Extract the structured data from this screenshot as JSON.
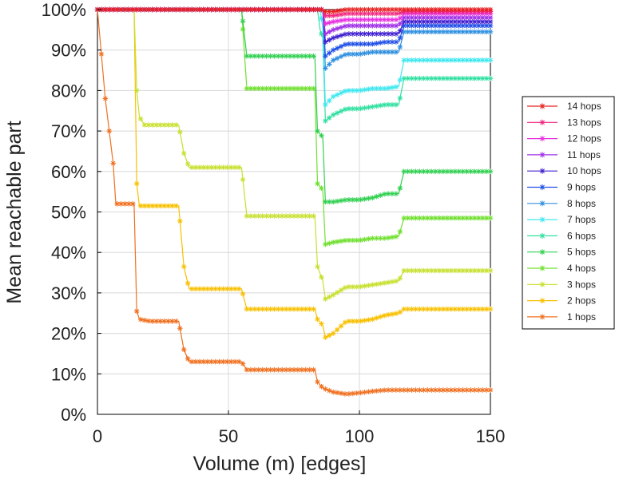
{
  "chart_data": {
    "type": "line",
    "title": "",
    "xlabel": "Volume (m) [edges]",
    "ylabel": "Mean reachable part",
    "xlim": [
      0,
      150
    ],
    "ylim": [
      0,
      100
    ],
    "x_ticks": [
      0,
      50,
      100,
      150
    ],
    "x_tick_labels": [
      "0",
      "50",
      "100",
      "150"
    ],
    "y_ticks": [
      0,
      10,
      20,
      30,
      40,
      50,
      60,
      70,
      80,
      90,
      100
    ],
    "y_tick_labels": [
      "0%",
      "10%",
      "20%",
      "30%",
      "40%",
      "50%",
      "60%",
      "70%",
      "80%",
      "90%",
      "100%"
    ],
    "grid": true,
    "legend_position": "right",
    "legend_order": [
      "14 hops",
      "13 hops",
      "12 hops",
      "11 hops",
      "10 hops",
      "9 hops",
      "8 hops",
      "7 hops",
      "6 hops",
      "5 hops",
      "4 hops",
      "3 hops",
      "2 hops",
      "1 hops"
    ],
    "series": [
      {
        "name": "1 hops",
        "color": "#f07020",
        "points": [
          [
            0,
            100
          ],
          [
            3,
            78
          ],
          [
            6,
            62
          ],
          [
            7,
            52
          ],
          [
            10,
            52
          ],
          [
            14,
            52
          ],
          [
            15,
            25.5
          ],
          [
            16,
            23.5
          ],
          [
            20,
            23
          ],
          [
            25,
            23
          ],
          [
            31,
            23
          ],
          [
            33,
            16
          ],
          [
            35,
            13
          ],
          [
            40,
            13
          ],
          [
            50,
            13
          ],
          [
            55,
            13
          ],
          [
            57,
            11
          ],
          [
            60,
            11
          ],
          [
            70,
            11
          ],
          [
            80,
            11
          ],
          [
            83,
            11
          ],
          [
            84,
            8
          ],
          [
            86,
            6.5
          ],
          [
            90,
            5.5
          ],
          [
            95,
            5
          ],
          [
            100,
            5.3
          ],
          [
            105,
            5.7
          ],
          [
            110,
            6
          ],
          [
            115,
            6
          ],
          [
            120,
            6
          ],
          [
            130,
            6
          ],
          [
            140,
            6
          ],
          [
            150,
            6
          ]
        ]
      },
      {
        "name": "2 hops",
        "color": "#f8c000",
        "points": [
          [
            0,
            100
          ],
          [
            10,
            100
          ],
          [
            14,
            100
          ],
          [
            15,
            57
          ],
          [
            16,
            51.5
          ],
          [
            20,
            51.5
          ],
          [
            25,
            51.5
          ],
          [
            31,
            51.5
          ],
          [
            33,
            36.5
          ],
          [
            35,
            31
          ],
          [
            40,
            31
          ],
          [
            50,
            31
          ],
          [
            55,
            31
          ],
          [
            57,
            26
          ],
          [
            60,
            26
          ],
          [
            70,
            26
          ],
          [
            80,
            26
          ],
          [
            83,
            26
          ],
          [
            84,
            23.5
          ],
          [
            86,
            22
          ],
          [
            87,
            19
          ],
          [
            90,
            20
          ],
          [
            95,
            23
          ],
          [
            100,
            23
          ],
          [
            105,
            23.5
          ],
          [
            110,
            24.5
          ],
          [
            115,
            25
          ],
          [
            117,
            26
          ],
          [
            120,
            26
          ],
          [
            130,
            26
          ],
          [
            140,
            26
          ],
          [
            150,
            26
          ]
        ]
      },
      {
        "name": "3 hops",
        "color": "#c8e030",
        "points": [
          [
            0,
            100
          ],
          [
            10,
            100
          ],
          [
            14,
            100
          ],
          [
            15,
            80
          ],
          [
            16,
            73.5
          ],
          [
            18,
            71.5
          ],
          [
            25,
            71.5
          ],
          [
            31,
            71.5
          ],
          [
            33,
            64.5
          ],
          [
            35,
            61
          ],
          [
            40,
            61
          ],
          [
            50,
            61
          ],
          [
            55,
            61
          ],
          [
            57,
            49
          ],
          [
            60,
            49
          ],
          [
            70,
            49
          ],
          [
            80,
            49
          ],
          [
            83,
            49
          ],
          [
            84,
            36.5
          ],
          [
            86,
            33
          ],
          [
            87,
            28.5
          ],
          [
            90,
            29.5
          ],
          [
            95,
            31.5
          ],
          [
            100,
            31.5
          ],
          [
            105,
            32
          ],
          [
            110,
            32.5
          ],
          [
            115,
            33
          ],
          [
            117,
            35.5
          ],
          [
            120,
            35.5
          ],
          [
            130,
            35.5
          ],
          [
            140,
            35.5
          ],
          [
            150,
            35.5
          ]
        ]
      },
      {
        "name": "4 hops",
        "color": "#70e030",
        "points": [
          [
            0,
            100
          ],
          [
            20,
            100
          ],
          [
            40,
            100
          ],
          [
            55,
            100
          ],
          [
            57,
            80.5
          ],
          [
            60,
            80.5
          ],
          [
            70,
            80.5
          ],
          [
            80,
            80.5
          ],
          [
            83,
            80.5
          ],
          [
            84,
            57
          ],
          [
            86,
            55.5
          ],
          [
            87,
            42
          ],
          [
            90,
            42.5
          ],
          [
            95,
            43
          ],
          [
            100,
            43
          ],
          [
            105,
            43.5
          ],
          [
            110,
            43.5
          ],
          [
            115,
            44
          ],
          [
            117,
            48.5
          ],
          [
            120,
            48.5
          ],
          [
            130,
            48.5
          ],
          [
            140,
            48.5
          ],
          [
            150,
            48.5
          ]
        ]
      },
      {
        "name": "5 hops",
        "color": "#30d050",
        "points": [
          [
            0,
            100
          ],
          [
            20,
            100
          ],
          [
            40,
            100
          ],
          [
            55,
            100
          ],
          [
            57,
            88.5
          ],
          [
            60,
            88.5
          ],
          [
            70,
            88.5
          ],
          [
            80,
            88.5
          ],
          [
            83,
            88.5
          ],
          [
            84,
            70
          ],
          [
            86,
            68.5
          ],
          [
            87,
            52.5
          ],
          [
            90,
            52.5
          ],
          [
            95,
            53
          ],
          [
            100,
            53
          ],
          [
            105,
            53.5
          ],
          [
            110,
            54.5
          ],
          [
            115,
            54.5
          ],
          [
            117,
            60
          ],
          [
            120,
            60
          ],
          [
            130,
            60
          ],
          [
            140,
            60
          ],
          [
            150,
            60
          ]
        ]
      },
      {
        "name": "6 hops",
        "color": "#30e0a0",
        "points": [
          [
            0,
            100
          ],
          [
            20,
            100
          ],
          [
            40,
            100
          ],
          [
            60,
            100
          ],
          [
            80,
            100
          ],
          [
            84,
            100
          ],
          [
            85,
            95
          ],
          [
            86,
            93
          ],
          [
            87,
            72.5
          ],
          [
            90,
            74
          ],
          [
            95,
            75.5
          ],
          [
            100,
            75.5
          ],
          [
            105,
            76
          ],
          [
            110,
            76.5
          ],
          [
            115,
            76.5
          ],
          [
            117,
            83
          ],
          [
            120,
            83
          ],
          [
            130,
            83
          ],
          [
            140,
            83
          ],
          [
            150,
            83
          ]
        ]
      },
      {
        "name": "7 hops",
        "color": "#40e8f0",
        "points": [
          [
            0,
            100
          ],
          [
            40,
            100
          ],
          [
            80,
            100
          ],
          [
            85,
            100
          ],
          [
            86,
            95.5
          ],
          [
            87,
            76.5
          ],
          [
            90,
            78.5
          ],
          [
            95,
            80
          ],
          [
            100,
            80
          ],
          [
            105,
            80.5
          ],
          [
            110,
            80.5
          ],
          [
            115,
            81
          ],
          [
            117,
            87.5
          ],
          [
            120,
            87.5
          ],
          [
            130,
            87.5
          ],
          [
            140,
            87.5
          ],
          [
            150,
            87.5
          ]
        ]
      },
      {
        "name": "8 hops",
        "color": "#3090e0",
        "points": [
          [
            0,
            100
          ],
          [
            40,
            100
          ],
          [
            80,
            100
          ],
          [
            86,
            100
          ],
          [
            87,
            85.5
          ],
          [
            90,
            87.5
          ],
          [
            95,
            89
          ],
          [
            100,
            89
          ],
          [
            105,
            89.5
          ],
          [
            110,
            89.5
          ],
          [
            115,
            89.5
          ],
          [
            117,
            94.5
          ],
          [
            120,
            94.5
          ],
          [
            130,
            94.5
          ],
          [
            140,
            94.5
          ],
          [
            150,
            94.5
          ]
        ]
      },
      {
        "name": "9 hops",
        "color": "#2050e8",
        "points": [
          [
            0,
            100
          ],
          [
            40,
            100
          ],
          [
            80,
            100
          ],
          [
            86,
            100
          ],
          [
            87,
            88.5
          ],
          [
            90,
            90
          ],
          [
            95,
            91.5
          ],
          [
            100,
            91.5
          ],
          [
            105,
            91.5
          ],
          [
            110,
            92
          ],
          [
            115,
            92
          ],
          [
            117,
            96
          ],
          [
            120,
            96
          ],
          [
            130,
            96
          ],
          [
            140,
            96
          ],
          [
            150,
            96
          ]
        ]
      },
      {
        "name": "10 hops",
        "color": "#4020d0",
        "points": [
          [
            0,
            100
          ],
          [
            40,
            100
          ],
          [
            80,
            100
          ],
          [
            86,
            100
          ],
          [
            87,
            92
          ],
          [
            90,
            93
          ],
          [
            95,
            94
          ],
          [
            100,
            94
          ],
          [
            105,
            94
          ],
          [
            110,
            94
          ],
          [
            115,
            94
          ],
          [
            117,
            97
          ],
          [
            120,
            97
          ],
          [
            130,
            97
          ],
          [
            140,
            97
          ],
          [
            150,
            97
          ]
        ]
      },
      {
        "name": "11 hops",
        "color": "#a030e8",
        "points": [
          [
            0,
            100
          ],
          [
            40,
            100
          ],
          [
            80,
            100
          ],
          [
            86,
            100
          ],
          [
            87,
            94
          ],
          [
            90,
            95
          ],
          [
            95,
            96
          ],
          [
            100,
            96
          ],
          [
            105,
            96
          ],
          [
            110,
            96
          ],
          [
            115,
            96
          ],
          [
            117,
            98
          ],
          [
            120,
            98
          ],
          [
            130,
            98
          ],
          [
            140,
            98
          ],
          [
            150,
            98
          ]
        ]
      },
      {
        "name": "12 hops",
        "color": "#e830e0",
        "points": [
          [
            0,
            100
          ],
          [
            40,
            100
          ],
          [
            80,
            100
          ],
          [
            86,
            100
          ],
          [
            87,
            96.5
          ],
          [
            90,
            97
          ],
          [
            95,
            97.5
          ],
          [
            100,
            97.5
          ],
          [
            105,
            97.5
          ],
          [
            110,
            97.5
          ],
          [
            115,
            97.5
          ],
          [
            117,
            99
          ],
          [
            120,
            99
          ],
          [
            130,
            99
          ],
          [
            140,
            99
          ],
          [
            150,
            99
          ]
        ]
      },
      {
        "name": "13 hops",
        "color": "#f02880",
        "points": [
          [
            0,
            100
          ],
          [
            40,
            100
          ],
          [
            80,
            100
          ],
          [
            86,
            100
          ],
          [
            87,
            98.5
          ],
          [
            90,
            98.5
          ],
          [
            95,
            99
          ],
          [
            100,
            99
          ],
          [
            105,
            99
          ],
          [
            110,
            99
          ],
          [
            115,
            99
          ],
          [
            117,
            99.5
          ],
          [
            120,
            99.5
          ],
          [
            130,
            99.5
          ],
          [
            140,
            99.5
          ],
          [
            150,
            99.5
          ]
        ]
      },
      {
        "name": "14 hops",
        "color": "#e82020",
        "points": [
          [
            0,
            100
          ],
          [
            40,
            100
          ],
          [
            80,
            100
          ],
          [
            86,
            100
          ],
          [
            87,
            99.5
          ],
          [
            90,
            99.5
          ],
          [
            95,
            100
          ],
          [
            100,
            100
          ],
          [
            110,
            100
          ],
          [
            117,
            100
          ],
          [
            120,
            100
          ],
          [
            130,
            100
          ],
          [
            140,
            100
          ],
          [
            150,
            100
          ]
        ]
      }
    ]
  }
}
